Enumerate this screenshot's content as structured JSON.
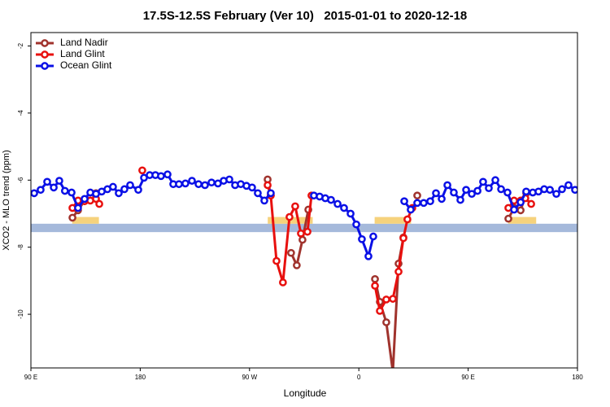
{
  "chart_data": {
    "type": "line",
    "title": "17.5S-12.5S February (Ver 10)   2015-01-01 to 2020-12-18",
    "xlabel": "Longitude",
    "ylabel": "XCO2 - MLO trend (ppm)",
    "xlim": [
      90,
      540
    ],
    "ylim": [
      -11.6,
      -1.6
    ],
    "xticks": [
      {
        "value": 90,
        "label": "90 E"
      },
      {
        "value": 180,
        "label": "180"
      },
      {
        "value": 270,
        "label": "90 W"
      },
      {
        "value": 360,
        "label": "0"
      },
      {
        "value": 450,
        "label": "90 E"
      },
      {
        "value": 540,
        "label": "180"
      }
    ],
    "yticks": [
      -10,
      -8,
      -6,
      -4,
      -2
    ],
    "legend": "top-left",
    "ocean_band": {
      "color": "#a5b9db",
      "range": [
        -7.55,
        -7.3
      ]
    },
    "land_regions": {
      "color": "#f6d27c",
      "top": -7.1,
      "ranges": [
        [
          124,
          146
        ],
        [
          285,
          322
        ],
        [
          373,
          403
        ],
        [
          483,
          506
        ]
      ]
    },
    "series": [
      {
        "name": "Land Nadir",
        "color": "#a0332d",
        "x": [
          124.2,
          128.8,
          134.2,
          138.9,
          143.6,
          null,
          284.9,
          287.5,
          null,
          304.2,
          308.9,
          313.6,
          318.4,
          null,
          373.3,
          377.3,
          382.6,
          388,
          392.7,
          396.7,
          null,
          408.1,
          null,
          483.1,
          487.8,
          493.2,
          497.8
        ],
        "values": [
          -7.12,
          -6.9,
          -6.61,
          -6.49,
          -6.39,
          null,
          -5.98,
          -6.46,
          null,
          -8.17,
          -8.54,
          -7.78,
          -6.88,
          null,
          -8.95,
          -9.63,
          -10.24,
          -11.71,
          -8.49,
          -7.71,
          null,
          -6.46,
          null,
          -7.15,
          -6.83,
          -6.9,
          -6.39
        ]
      },
      {
        "name": "Land Glint",
        "color": "#e8100e",
        "x": [
          124.2,
          128.8,
          134.2,
          138.9,
          143.6,
          146.3,
          null,
          181.7,
          null,
          284.9,
          287.5,
          292.2,
          297.5,
          302.9,
          307.6,
          312.3,
          317.7,
          321,
          null,
          373.3,
          377.3,
          382.6,
          388,
          392.7,
          396.7,
          400,
          404,
          null,
          483.1,
          487.8,
          493.2,
          497.1,
          501.9
        ],
        "values": [
          -6.83,
          -6.61,
          -6.63,
          -6.61,
          -6.56,
          -6.71,
          null,
          -5.71,
          null,
          -6.15,
          -6.46,
          -8.41,
          -9.05,
          -7.1,
          -6.78,
          -7.59,
          -7.54,
          -6.46,
          null,
          -9.15,
          -9.9,
          -9.56,
          -9.54,
          -8.73,
          -7.73,
          -7.17,
          -6.83,
          null,
          -6.83,
          -6.61,
          -6.61,
          -6.54,
          -6.71
        ]
      },
      {
        "name": "Ocean Glint",
        "color": "#0a10e6",
        "x": [
          92.7,
          98,
          103.4,
          108.8,
          113.4,
          118,
          123.5,
          128.8,
          134.2,
          138.9,
          143.6,
          148.3,
          153,
          157.6,
          162.3,
          167,
          171.7,
          178.4,
          183.1,
          187.8,
          192.5,
          197.1,
          202.5,
          207.2,
          211.9,
          217.2,
          222.6,
          228,
          233.3,
          238.7,
          244,
          248.7,
          253.4,
          258.1,
          262.8,
          267.5,
          272.1,
          276.8,
          282.2,
          287.5,
          null,
          323,
          327.7,
          332.4,
          337.1,
          342.5,
          347.8,
          353.2,
          357.9,
          362.5,
          367.9,
          371.9,
          null,
          397.4,
          402.7,
          408.1,
          413.4,
          418.8,
          423.5,
          428.2,
          432.9,
          438.2,
          443.6,
          448.3,
          453,
          457.7,
          462.3,
          467,
          472.4,
          477.1,
          482.4,
          487.8,
          493.2,
          497.8,
          503.2,
          507.9,
          512.6,
          517.3,
          522.6,
          527.3,
          532.6,
          538
        ],
        "values": [
          -6.39,
          -6.29,
          -6.05,
          -6.22,
          -6.02,
          -6.32,
          -6.37,
          -6.83,
          -6.56,
          -6.37,
          -6.41,
          -6.34,
          -6.27,
          -6.2,
          -6.39,
          -6.27,
          -6.15,
          -6.29,
          -5.93,
          -5.85,
          -5.85,
          -5.88,
          -5.83,
          -6.12,
          -6.12,
          -6.1,
          -6.02,
          -6.12,
          -6.15,
          -6.07,
          -6.1,
          -6.02,
          -5.98,
          -6.15,
          -6.12,
          -6.17,
          -6.22,
          -6.39,
          -6.61,
          -6.39,
          null,
          -6.46,
          -6.49,
          -6.54,
          -6.59,
          -6.71,
          -6.83,
          -7.0,
          -7.32,
          -7.76,
          -8.27,
          -7.68,
          null,
          -6.63,
          -6.88,
          -6.68,
          -6.68,
          -6.63,
          -6.39,
          -6.56,
          -6.15,
          -6.37,
          -6.59,
          -6.29,
          -6.41,
          -6.32,
          -6.05,
          -6.24,
          -6.0,
          -6.27,
          -6.37,
          -6.88,
          -6.66,
          -6.34,
          -6.37,
          -6.34,
          -6.27,
          -6.29,
          -6.41,
          -6.27,
          -6.15,
          -6.29
        ]
      }
    ]
  }
}
